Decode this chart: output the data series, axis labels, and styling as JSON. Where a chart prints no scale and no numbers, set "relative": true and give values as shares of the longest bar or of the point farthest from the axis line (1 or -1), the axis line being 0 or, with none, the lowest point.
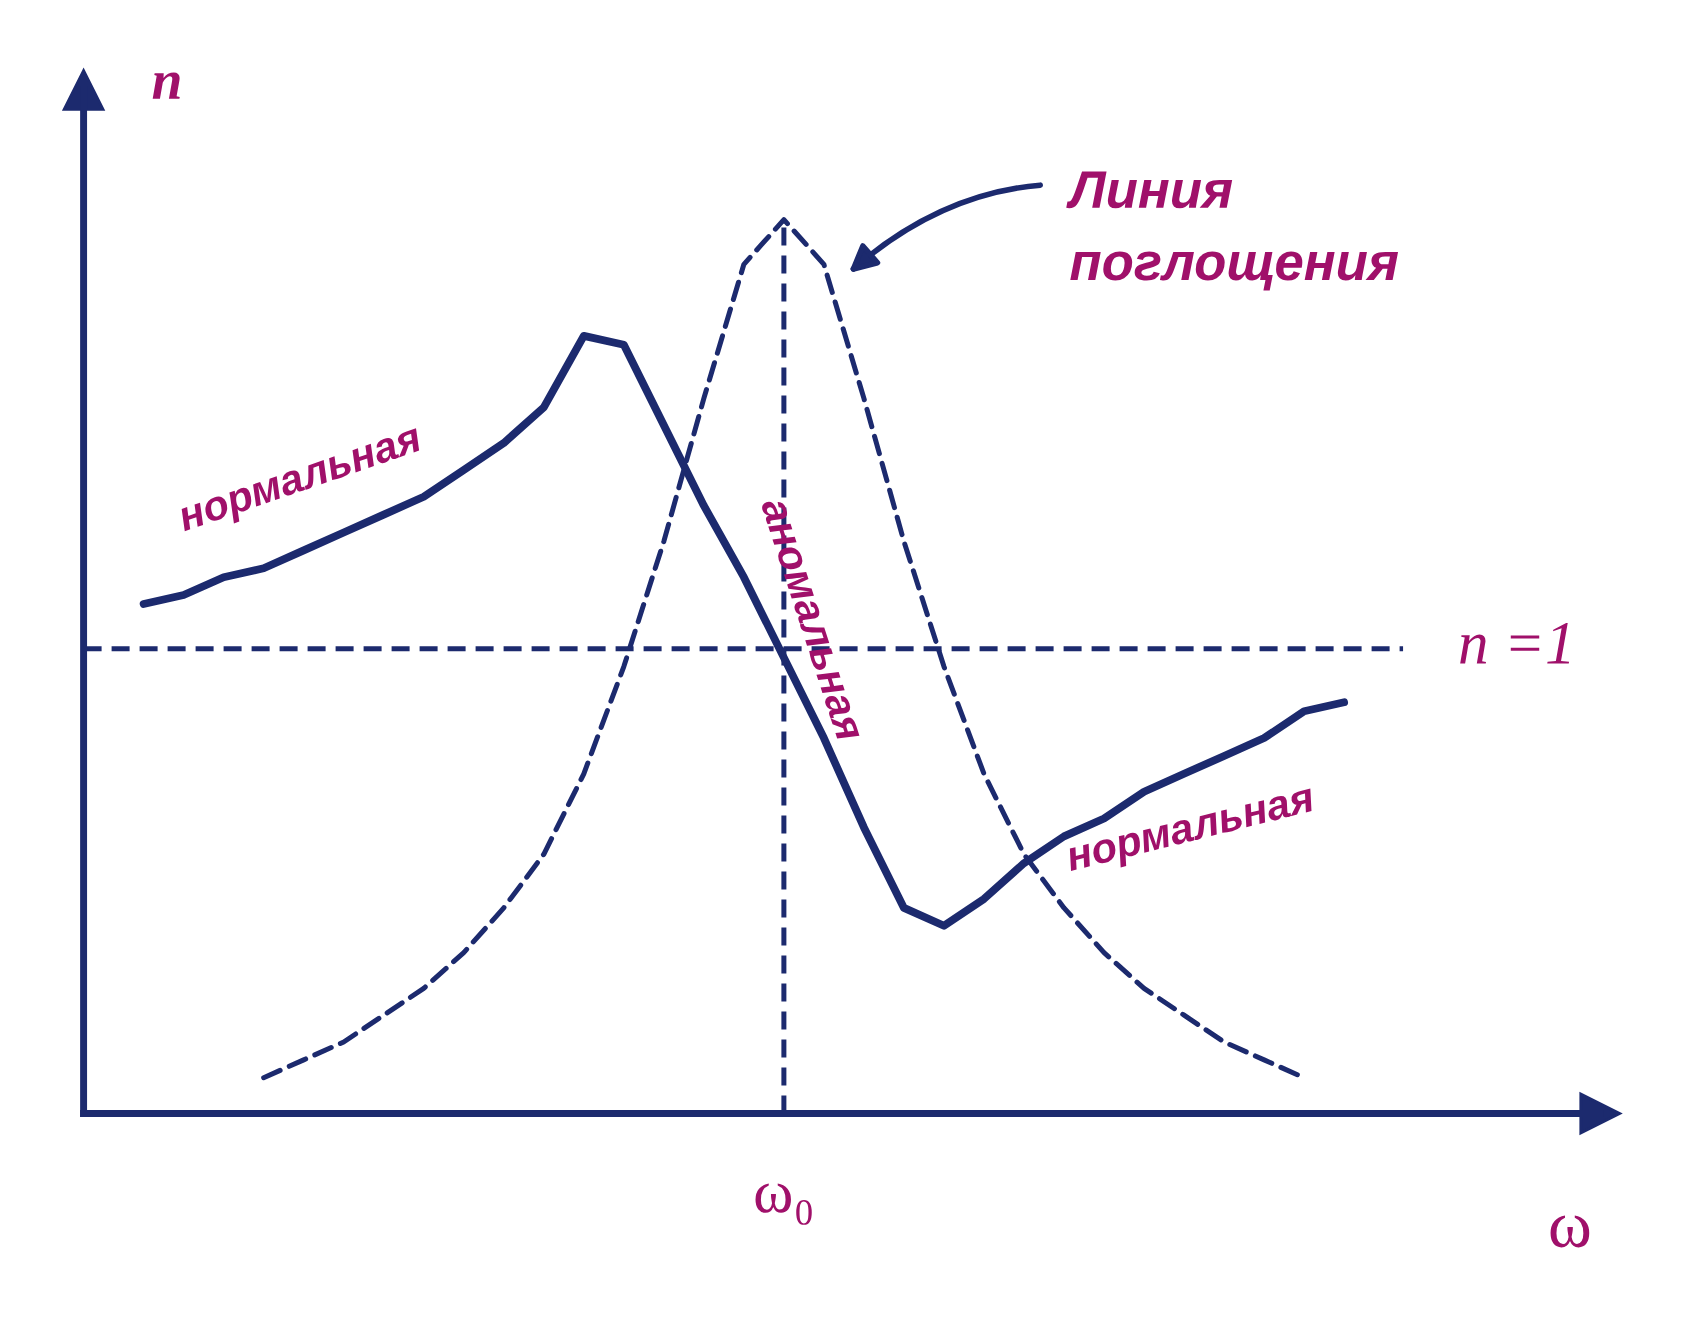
{
  "chart_data": {
    "type": "line",
    "relative": true,
    "xlabel": "ω",
    "ylabel": "n",
    "legend": false,
    "marker": "none",
    "categories": [
      null,
      null,
      null,
      null,
      null,
      null,
      null,
      null,
      null,
      null,
      null,
      null,
      null,
      null,
      null,
      null,
      null,
      null,
      null,
      null,
      null,
      null,
      null,
      null,
      null,
      null,
      null,
      null,
      null,
      null,
      null
    ],
    "series": [
      {
        "color": "#1c2a6e",
        "line_style": "solid",
        "values": [
          0.57,
          0.58,
          0.6,
          0.61,
          0.63,
          0.65,
          0.67,
          0.69,
          0.72,
          0.75,
          0.79,
          0.87,
          0.86,
          0.77,
          0.68,
          0.6,
          0.51,
          0.42,
          0.32,
          0.23,
          0.21,
          0.24,
          0.28,
          0.31,
          0.33,
          0.36,
          0.38,
          0.4,
          0.42,
          0.45,
          0.46
        ]
      },
      {
        "color": "#1c2a6e",
        "line_style": "dashed",
        "values": [
          null,
          null,
          null,
          0.04,
          0.06,
          0.08,
          0.11,
          0.14,
          0.18,
          0.23,
          0.29,
          0.38,
          0.5,
          0.64,
          0.8,
          0.95,
          1.0,
          0.95,
          0.8,
          0.64,
          0.5,
          0.38,
          0.29,
          0.23,
          0.18,
          0.14,
          0.11,
          0.08,
          0.06,
          0.04,
          null
        ]
      }
    ],
    "ref_lines": [
      {
        "axis": "y",
        "value": 0.52,
        "label": "n =1",
        "color": "#1c2a6e",
        "line_style": "dashed"
      }
    ],
    "annotations": [
      "нормальная",
      "аномальная",
      "нормальная",
      "Линия поглощения",
      "ω₀"
    ]
  }
}
